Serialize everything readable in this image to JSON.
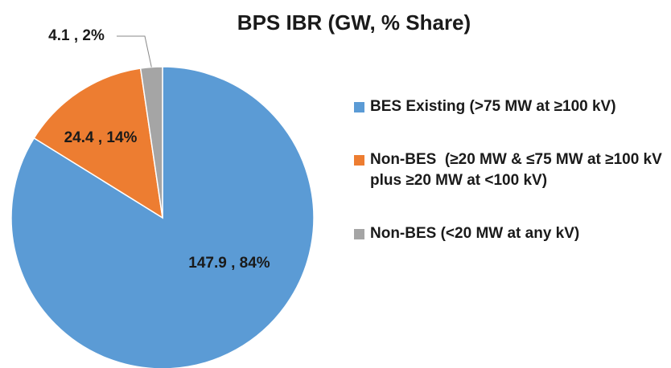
{
  "chart_data": {
    "type": "pie",
    "title": "BPS IBR (GW, % Share)",
    "categories": [
      "BES Existing (>75 MW at ≥100 kV)",
      "Non-BES  (≥20 MW & ≤75 MW at ≥100 kV plus ≥20 MW at <100 kV)",
      "Non-BES (<20 MW at any kV)"
    ],
    "values": [
      147.9,
      24.4,
      4.1
    ],
    "value_labels": [
      "147.9 , 84%",
      "24.4 , 14%",
      "4.1 , 2%"
    ],
    "colors": [
      "#5b9bd5",
      "#ed7d31",
      "#a5a5a5"
    ],
    "legend": "right"
  }
}
